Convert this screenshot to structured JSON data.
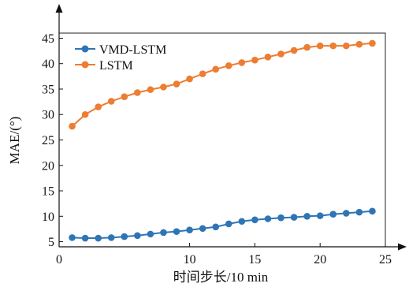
{
  "chart_data": {
    "type": "line",
    "xlabel": "时间步长/10 min",
    "ylabel": "MAE/(°)",
    "xlim": [
      0,
      25
    ],
    "ylim": [
      4,
      46
    ],
    "xticks": [
      0,
      10,
      15,
      20,
      25
    ],
    "yticks": [
      5,
      10,
      15,
      20,
      25,
      30,
      35,
      40,
      45
    ],
    "grid": false,
    "legend_position": "top-left",
    "x": [
      1,
      2,
      3,
      4,
      5,
      6,
      7,
      8,
      9,
      10,
      11,
      12,
      13,
      14,
      15,
      16,
      17,
      18,
      19,
      20,
      21,
      22,
      23,
      24
    ],
    "series": [
      {
        "name": "VMD-LSTM",
        "color": "#2e75b6",
        "values": [
          5.8,
          5.7,
          5.7,
          5.8,
          6.0,
          6.2,
          6.5,
          6.8,
          7.0,
          7.3,
          7.6,
          7.9,
          8.5,
          9.0,
          9.3,
          9.5,
          9.7,
          9.8,
          10.0,
          10.1,
          10.4,
          10.6,
          10.8,
          11.0
        ]
      },
      {
        "name": "LSTM",
        "color": "#ed7d31",
        "values": [
          27.7,
          30.0,
          31.5,
          32.6,
          33.5,
          34.3,
          34.9,
          35.4,
          36.0,
          37.0,
          38.0,
          38.9,
          39.6,
          40.2,
          40.7,
          41.3,
          41.9,
          42.6,
          43.2,
          43.5,
          43.5,
          43.5,
          43.8,
          44.0
        ]
      }
    ]
  }
}
